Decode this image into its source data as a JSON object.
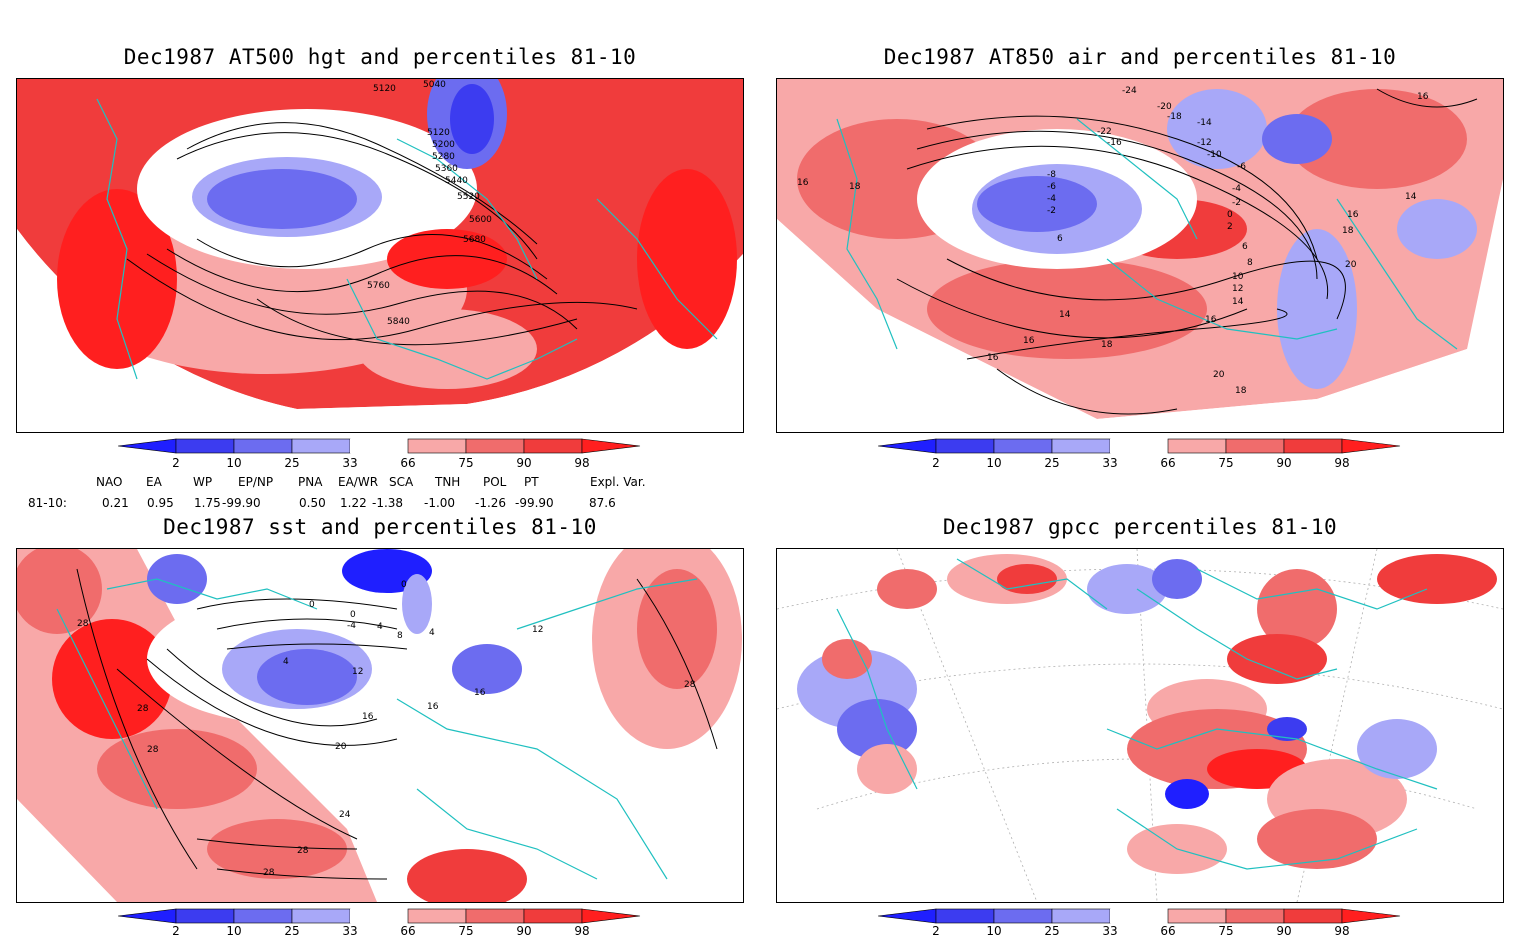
{
  "panels": [
    {
      "title": "Dec1987 AT500 hgt and percentiles 81-10"
    },
    {
      "title": "Dec1987 AT850 air and percentiles 81-10"
    },
    {
      "title": "Dec1987 sst and percentiles 81-10"
    },
    {
      "title": "Dec1987 gpcc percentiles 81-10"
    }
  ],
  "colorbar": {
    "labels": [
      "2",
      "10",
      "25",
      "33",
      "66",
      "75",
      "90",
      "98"
    ],
    "colors": [
      "#1f1fff",
      "#3c3cf0",
      "#6c6cf0",
      "#a8a8f8",
      "#ffffff",
      "#f8a8a8",
      "#f06c6c",
      "#f03c3c",
      "#ff1f1f"
    ]
  },
  "indices": {
    "header": [
      "NAO",
      "EA",
      "WP",
      "EP/NP",
      "PNA",
      "EA/WR",
      "SCA",
      "TNH",
      "POL",
      "PT",
      "Expl. Var."
    ],
    "row_label": "81-10:",
    "values": [
      "0.21",
      "0.95",
      "1.75",
      "-99.90",
      "0.50",
      "1.22",
      "-1.38",
      "-1.00",
      "-1.26",
      "-99.90",
      "87.6"
    ]
  },
  "contour_labels": {
    "hgt": [
      "5040",
      "5120",
      "5120",
      "5200",
      "5280",
      "5360",
      "5440",
      "5520",
      "5600",
      "5680",
      "5760",
      "5840"
    ],
    "air": [
      "-24",
      "-20",
      "-18",
      "-22",
      "-16",
      "-14",
      "-12",
      "-10",
      "-8",
      "-6",
      "-4",
      "-2",
      "0",
      "2",
      "4",
      "6",
      "8",
      "10",
      "12",
      "14",
      "16",
      "18",
      "20"
    ],
    "sst": [
      "0",
      "-4",
      "4",
      "8",
      "12",
      "16",
      "20",
      "24",
      "28"
    ]
  },
  "coastline_color": "#20c0c0"
}
